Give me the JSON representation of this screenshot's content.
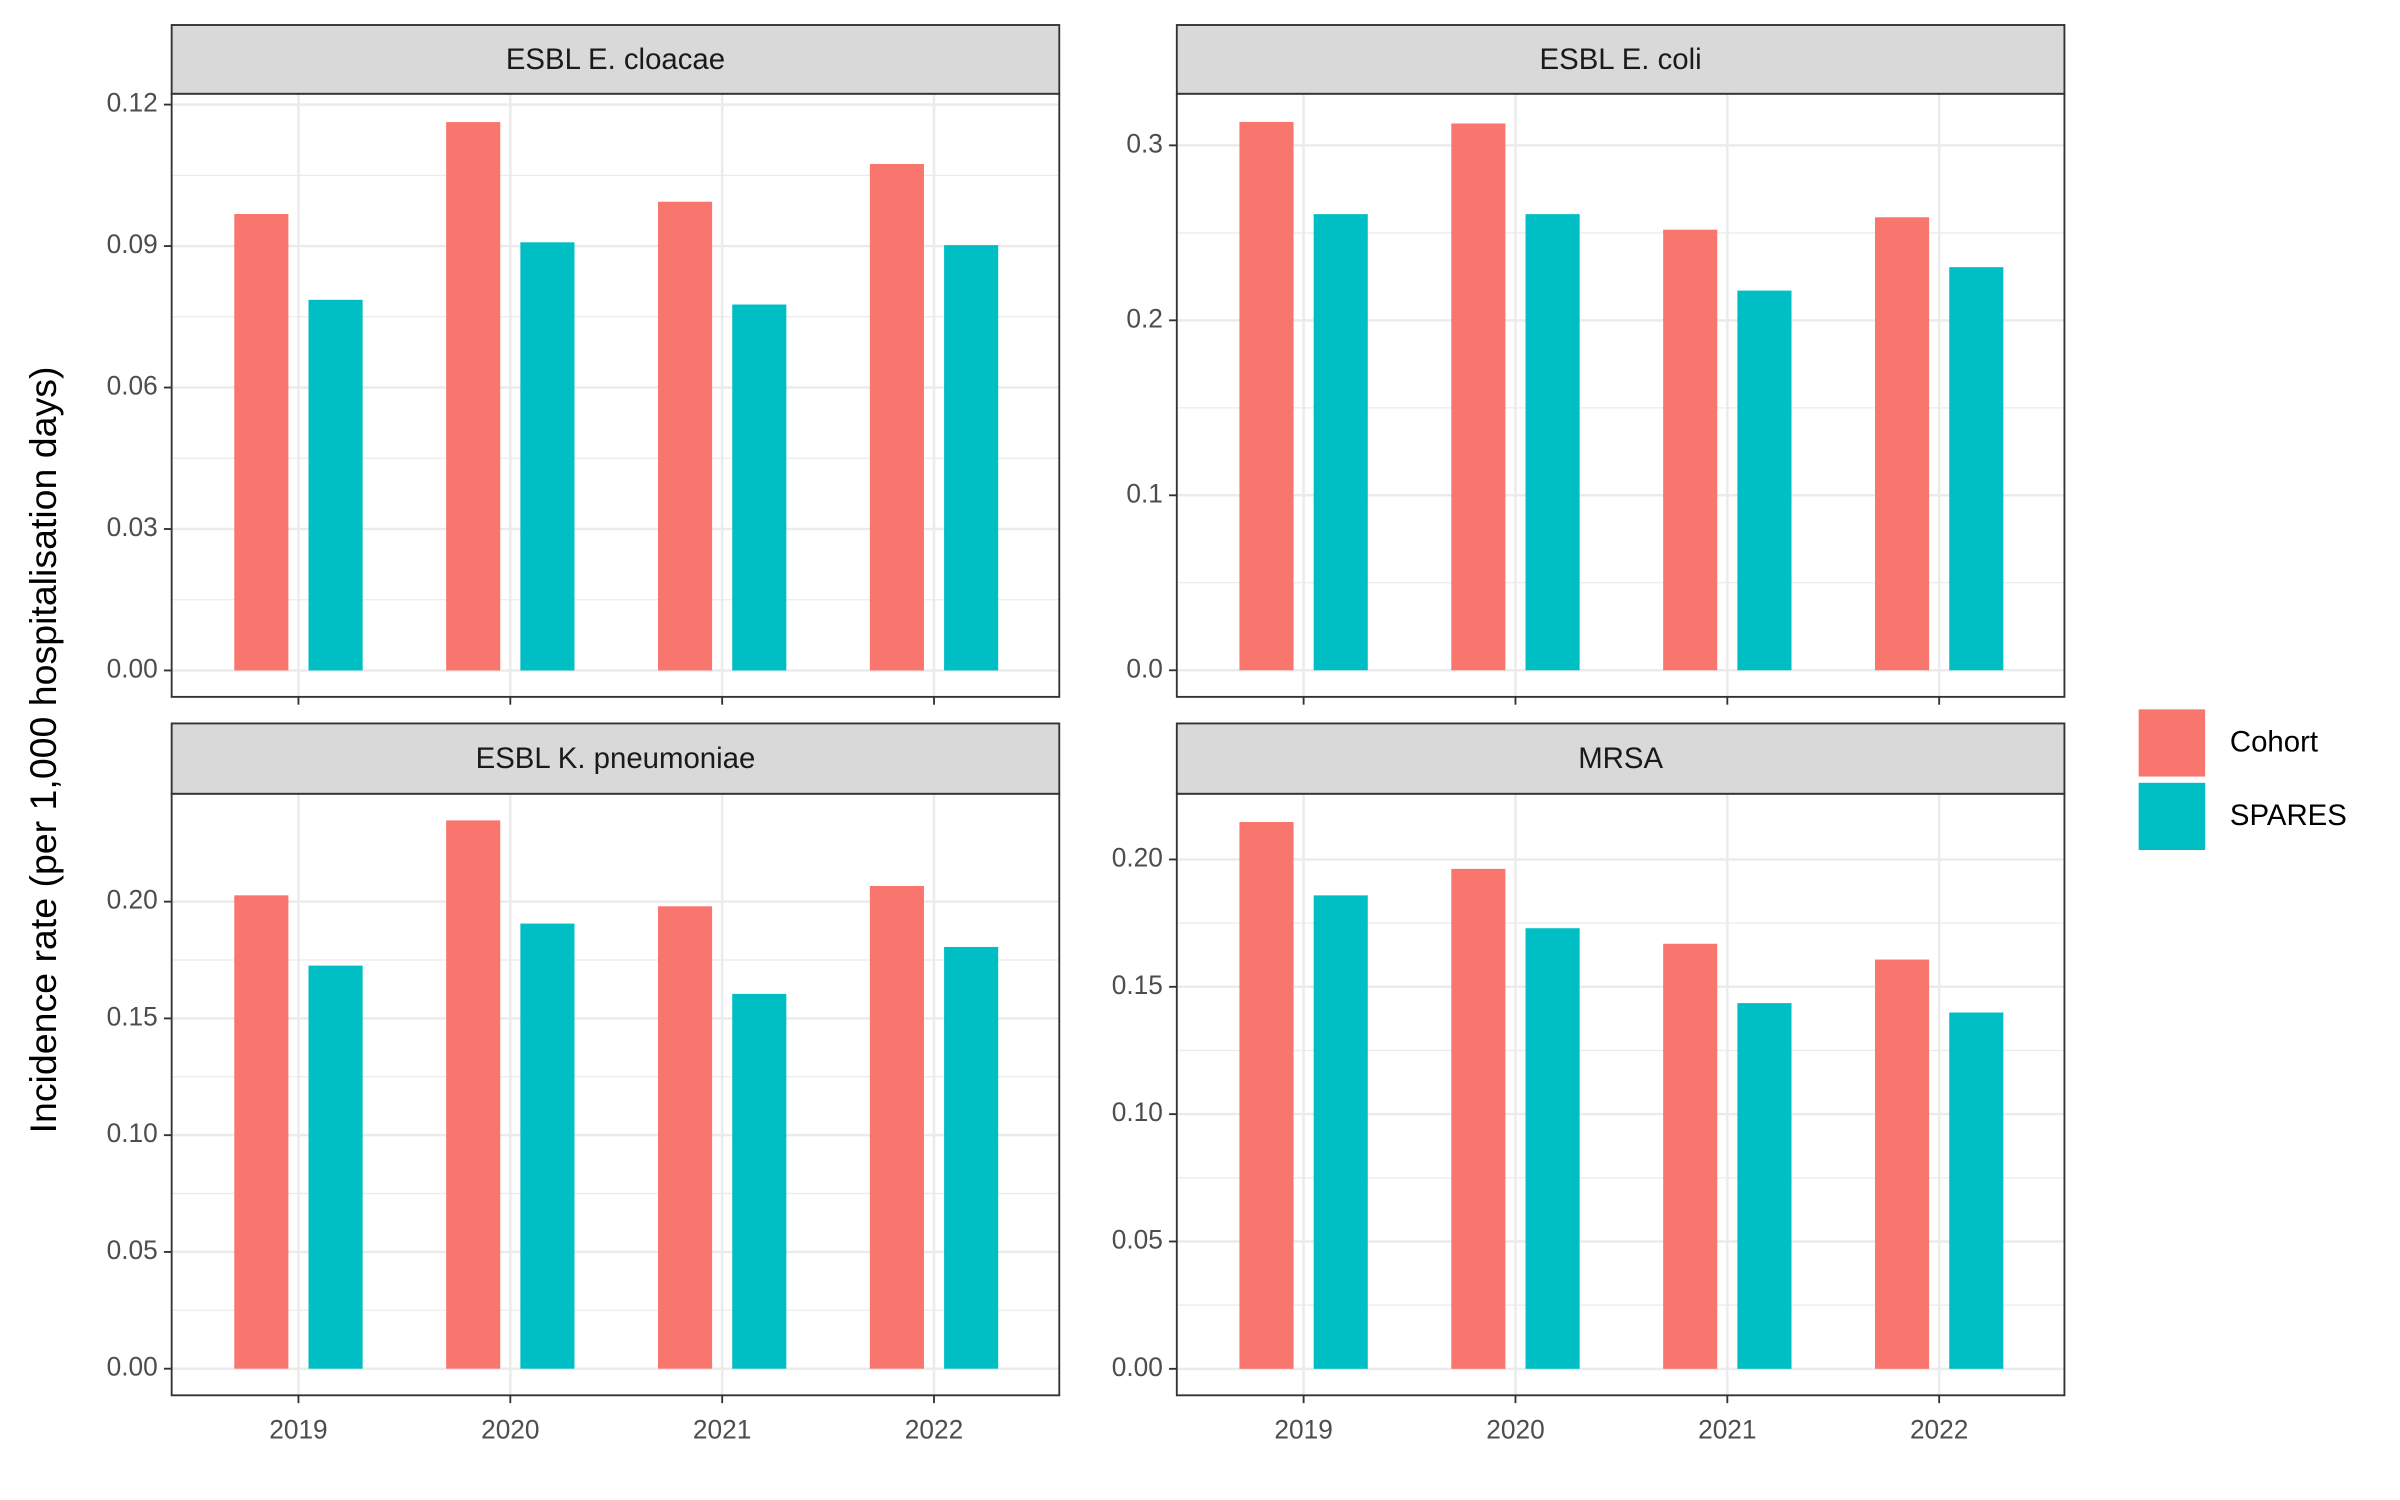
{
  "chart_data": [
    {
      "type": "bar",
      "title": "ESBL E. cloacae",
      "ylabel": "Incidence rate (per 1,000 hospitalisation days)",
      "categories": [
        "2019",
        "2020",
        "2021",
        "2022"
      ],
      "series": [
        {
          "name": "Cohort",
          "color": "#f8766d",
          "values": [
            0.0968,
            0.1163,
            0.0994,
            0.1074
          ]
        },
        {
          "name": "SPARES",
          "color": "#00bfc4",
          "values": [
            0.0786,
            0.0908,
            0.0776,
            0.0902
          ]
        }
      ],
      "ylim": [
        -0.0056,
        0.1223
      ],
      "yticks": [
        {
          "value": 0,
          "label": "0.00"
        },
        {
          "value": 0.03,
          "label": "0.03"
        },
        {
          "value": 0.06,
          "label": "0.06"
        },
        {
          "value": 0.09,
          "label": "0.09"
        },
        {
          "value": 0.12,
          "label": "0.12"
        }
      ],
      "grid": true
    },
    {
      "type": "bar",
      "title": "ESBL E. coli",
      "categories": [
        "2019",
        "2020",
        "2021",
        "2022"
      ],
      "series": [
        {
          "name": "Cohort",
          "color": "#f8766d",
          "values": [
            0.3134,
            0.3125,
            0.2518,
            0.2589
          ]
        },
        {
          "name": "SPARES",
          "color": "#00bfc4",
          "values": [
            0.2607,
            0.2607,
            0.217,
            0.2304
          ]
        }
      ],
      "ylim": [
        -0.0152,
        0.3295
      ],
      "yticks": [
        {
          "value": 0,
          "label": "0.0"
        },
        0.1,
        0.2,
        0.3
      ],
      "grid": true
    },
    {
      "type": "bar",
      "title": "ESBL K. pneumoniae",
      "categories": [
        "2019",
        "2020",
        "2021",
        "2022"
      ],
      "series": [
        {
          "name": "Cohort",
          "color": "#f8766d",
          "values": [
            0.2027,
            0.2348,
            0.198,
            0.2067
          ]
        },
        {
          "name": "SPARES",
          "color": "#00bfc4",
          "values": [
            0.1726,
            0.1906,
            0.1605,
            0.1806
          ]
        }
      ],
      "ylim": [
        -0.0114,
        0.2462
      ],
      "yticks": [
        {
          "value": 0,
          "label": "0.00"
        },
        {
          "value": 0.05,
          "label": "0.05"
        },
        {
          "value": 0.1,
          "label": "0.10"
        },
        {
          "value": 0.15,
          "label": "0.15"
        },
        {
          "value": 0.2,
          "label": "0.20"
        }
      ],
      "grid": true
    },
    {
      "type": "bar",
      "title": "MRSA",
      "categories": [
        "2019",
        "2020",
        "2021",
        "2022"
      ],
      "series": [
        {
          "name": "Cohort",
          "color": "#f8766d",
          "values": [
            0.2147,
            0.1963,
            0.1669,
            0.1607
          ]
        },
        {
          "name": "SPARES",
          "color": "#00bfc4",
          "values": [
            0.1859,
            0.173,
            0.1436,
            0.1399
          ]
        }
      ],
      "ylim": [
        -0.0104,
        0.2258
      ],
      "yticks": [
        {
          "value": 0,
          "label": "0.00"
        },
        {
          "value": 0.05,
          "label": "0.05"
        },
        {
          "value": 0.1,
          "label": "0.10"
        },
        {
          "value": 0.15,
          "label": "0.15"
        },
        {
          "value": 0.2,
          "label": "0.20"
        }
      ],
      "grid": true
    }
  ]
}
